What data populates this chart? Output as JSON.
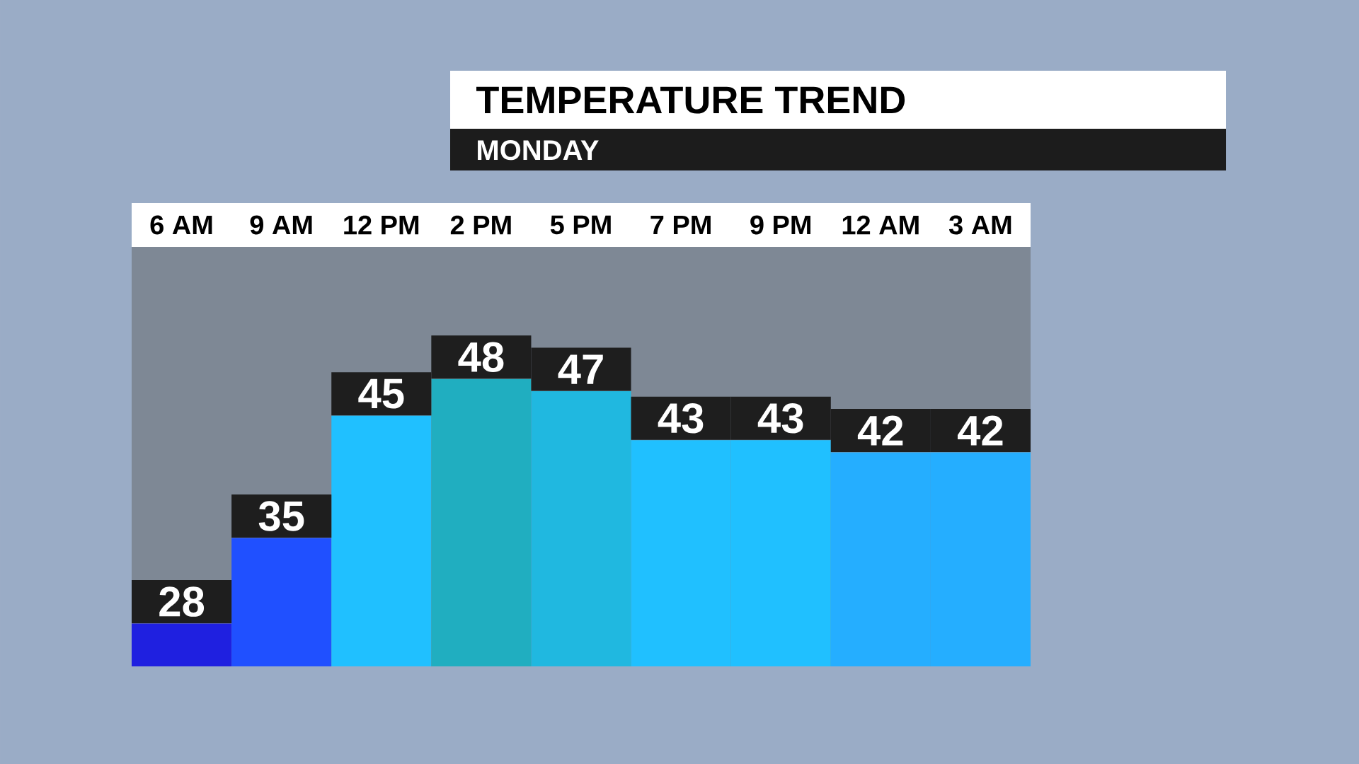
{
  "chart_data": {
    "type": "bar",
    "title": "TEMPERATURE TREND",
    "subtitle": "MONDAY",
    "categories": [
      "6 AM",
      "9 AM",
      "12 PM",
      "2 PM",
      "5 PM",
      "7 PM",
      "9 PM",
      "12 AM",
      "3 AM"
    ],
    "values": [
      28,
      35,
      45,
      48,
      47,
      43,
      43,
      42,
      42
    ],
    "colors": [
      "#1f20e0",
      "#2050ff",
      "#20c0ff",
      "#20aec0",
      "#20b8e0",
      "#20c0ff",
      "#20c0ff",
      "#25aeff",
      "#25aeff"
    ],
    "ylim": [
      24.5,
      58.8
    ],
    "tick_labels": "x",
    "data_labels": true
  }
}
